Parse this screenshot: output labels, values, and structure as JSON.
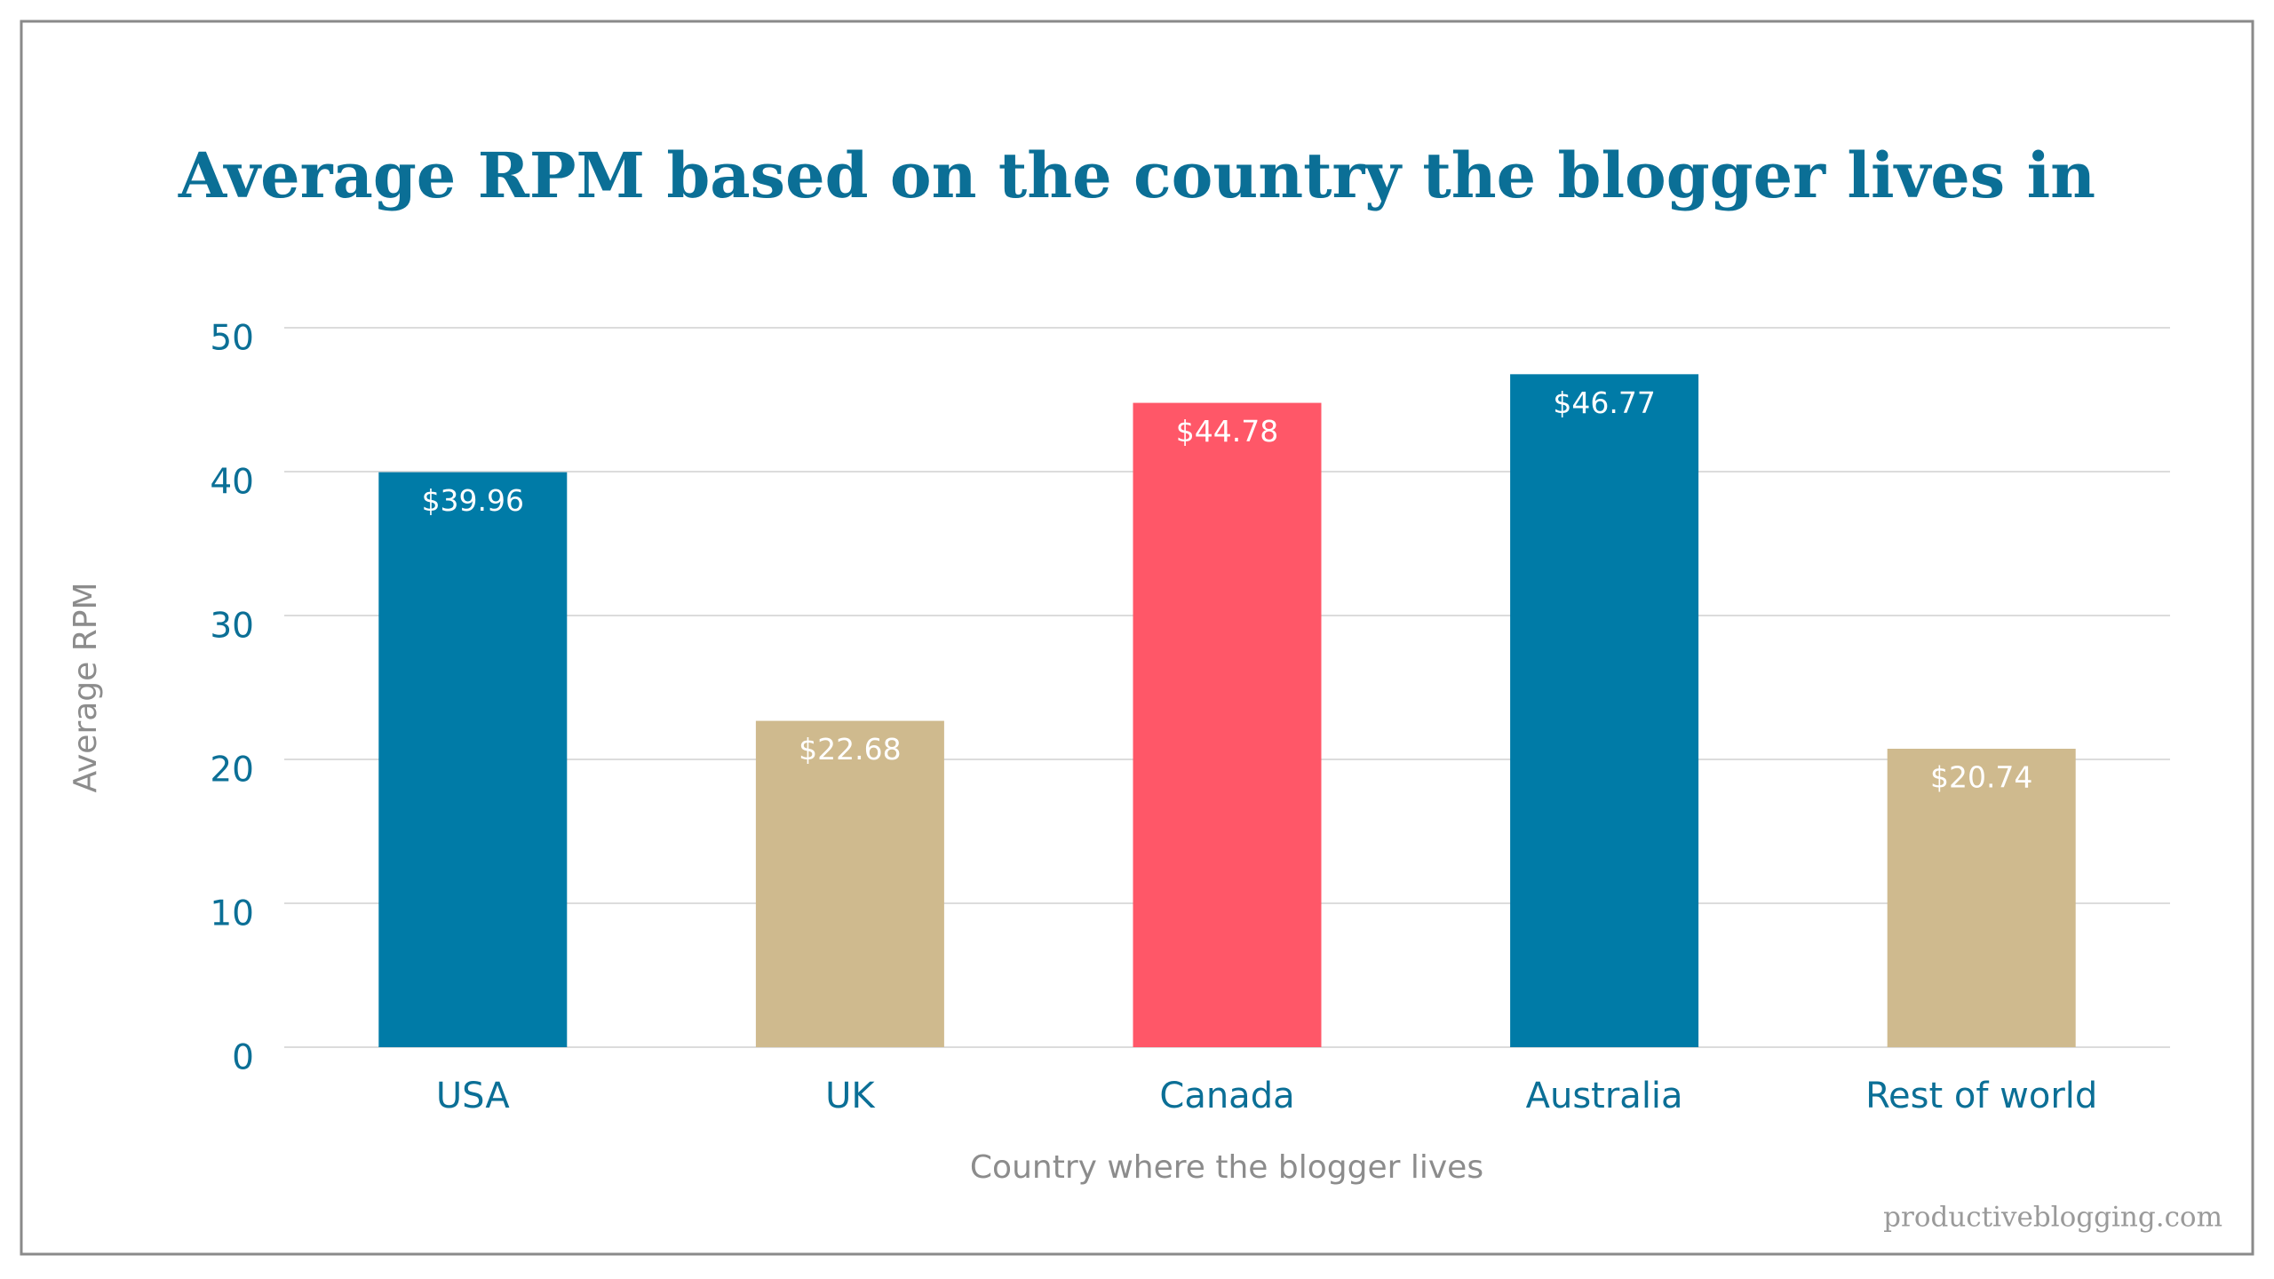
{
  "chart_data": {
    "type": "bar",
    "title": "Average RPM based on the country the blogger lives in",
    "x_label": "Country where the blogger lives",
    "y_label": "Average RPM",
    "watermark": "productiveblogging.com",
    "categories": [
      "USA",
      "UK",
      "Canada",
      "Australia",
      "Rest of world"
    ],
    "values": [
      39.96,
      22.68,
      44.78,
      46.77,
      20.74
    ],
    "value_labels": [
      "$39.96",
      "$22.68",
      "$44.78",
      "$46.77",
      "$20.74"
    ],
    "colors": [
      "#007ba7",
      "#cfba8e",
      "#ff5768",
      "#007ba7",
      "#cfba8e"
    ],
    "ylim": [
      0,
      50
    ],
    "yticks": [
      0,
      10,
      20,
      30,
      40,
      50
    ],
    "grid": true
  }
}
